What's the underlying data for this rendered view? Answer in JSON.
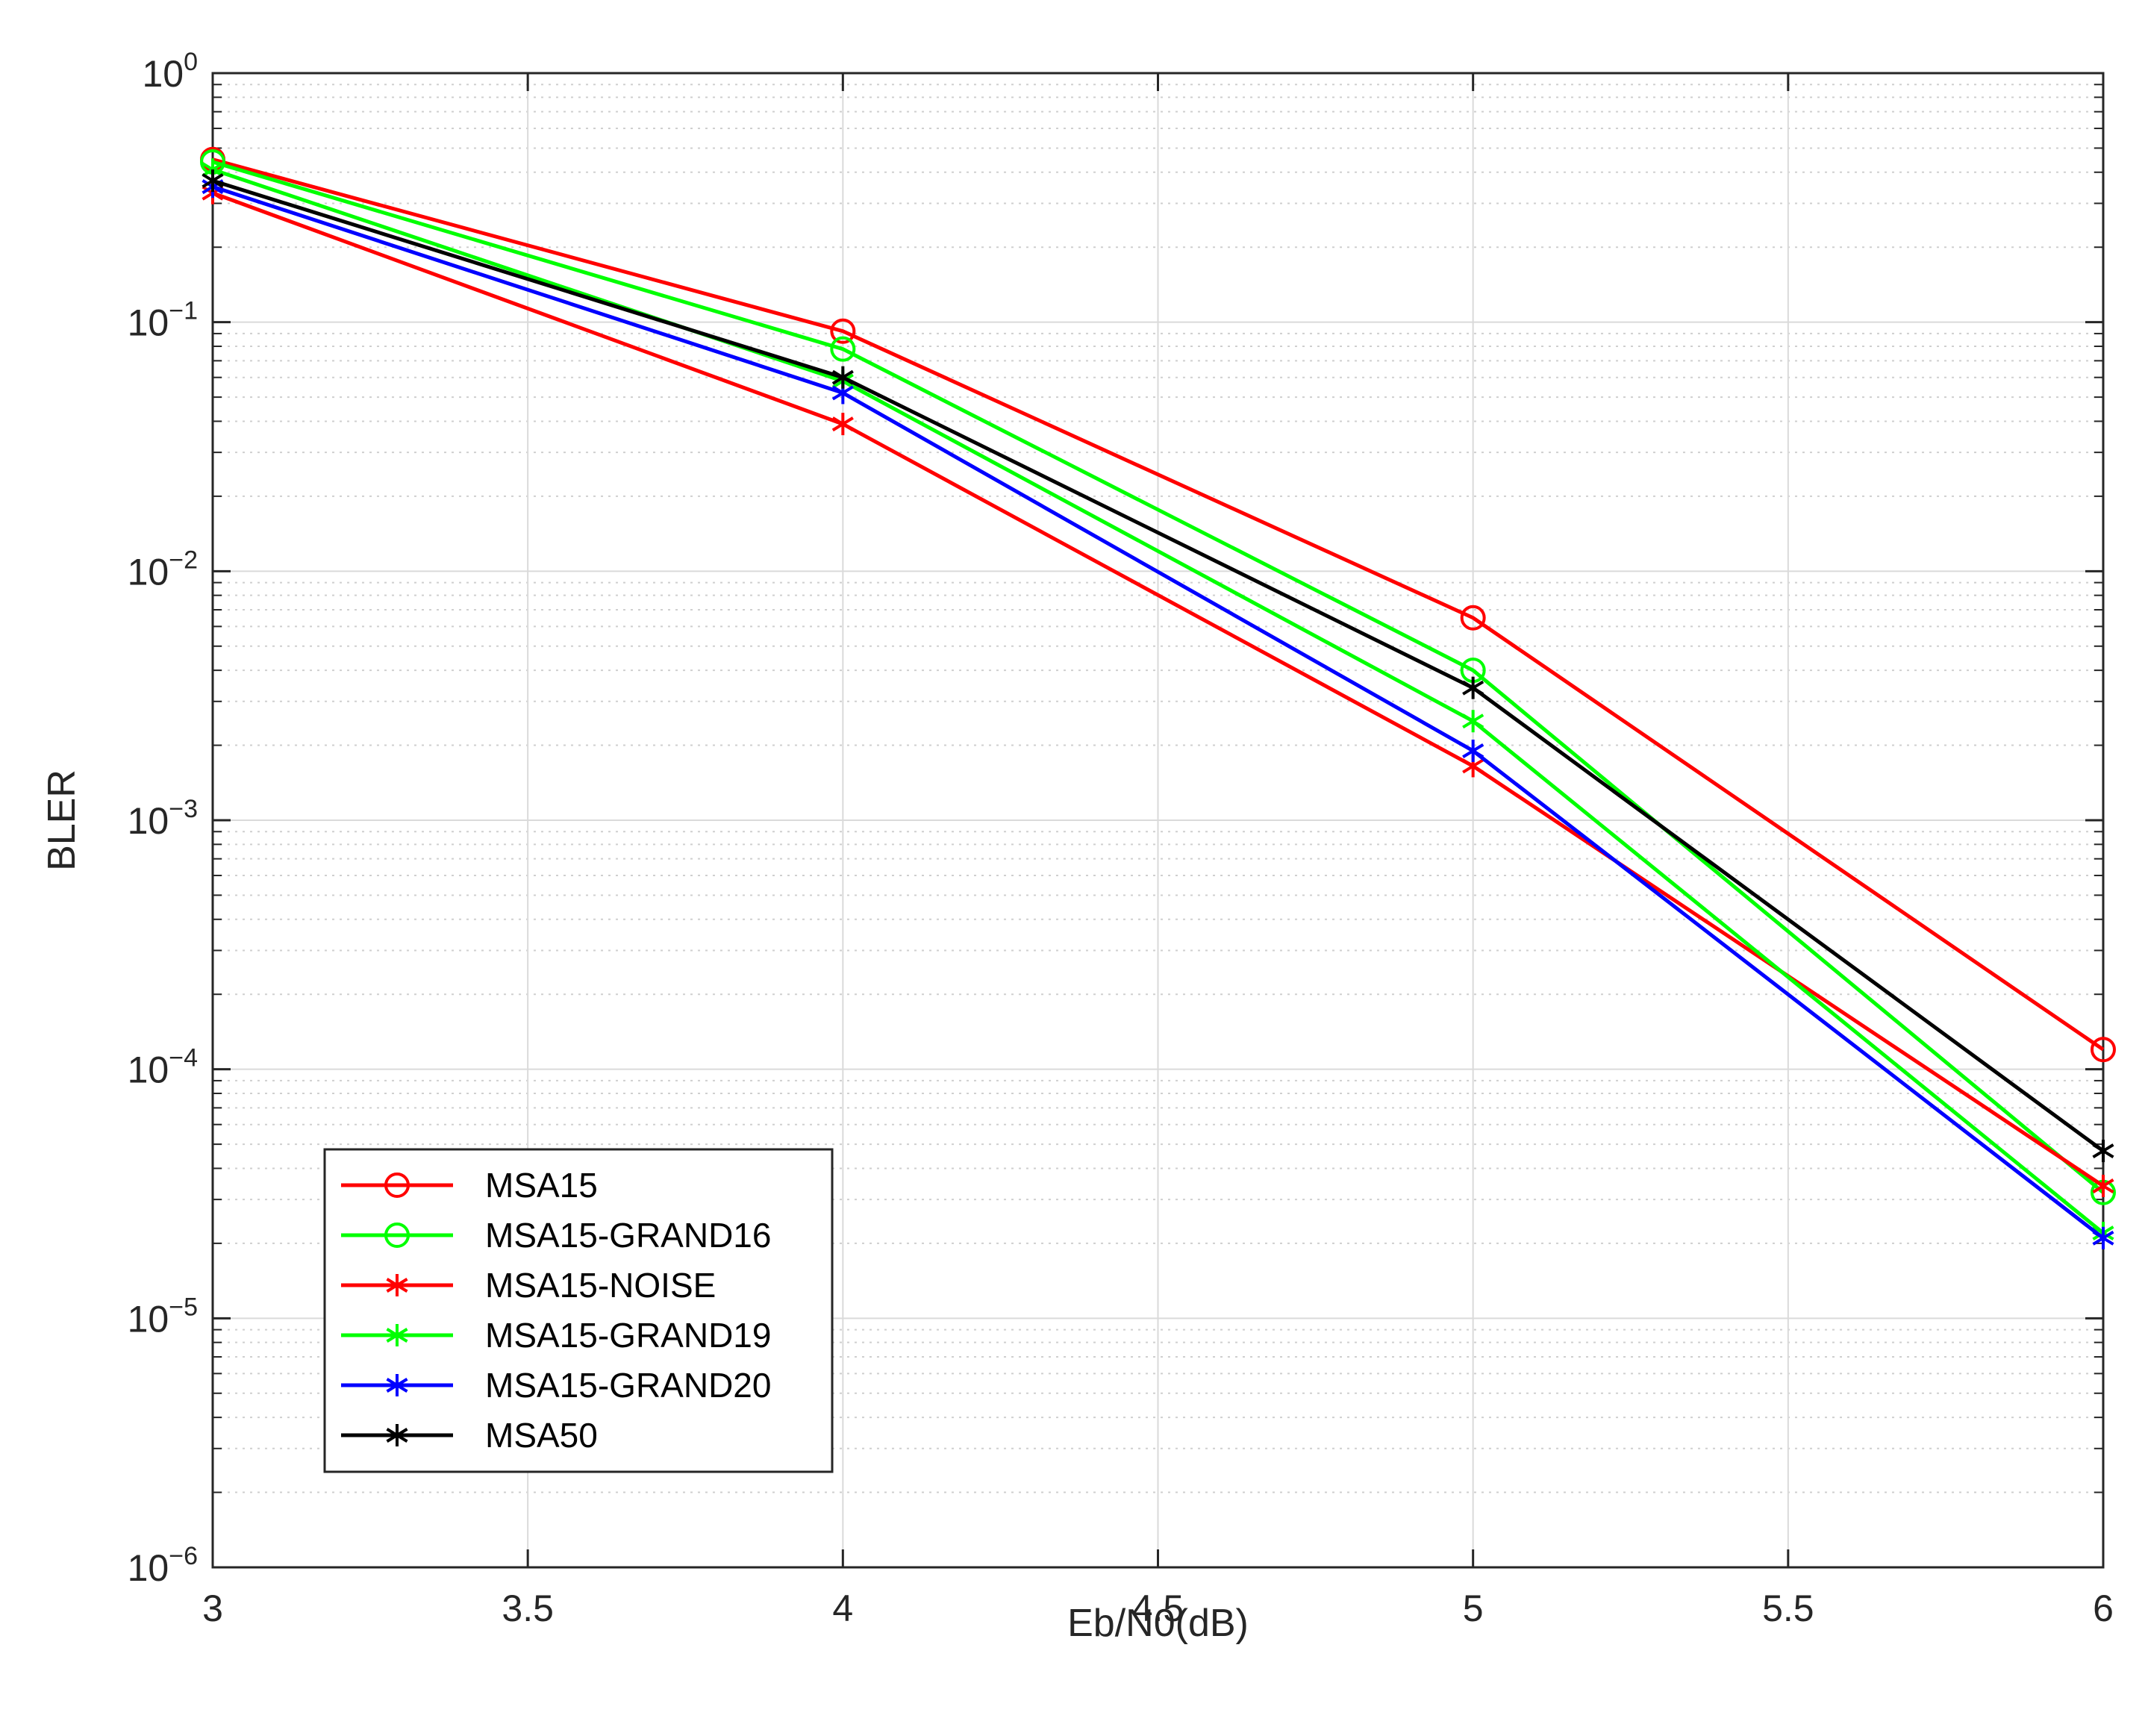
{
  "chart_data": {
    "type": "line",
    "xlabel": "Eb/N0(dB)",
    "ylabel": "BLER",
    "yscale": "log",
    "xlim": [
      3,
      6
    ],
    "ylim": [
      1e-06,
      1
    ],
    "grid": true,
    "legend_position": "bottom-left",
    "x_ticks": [
      3,
      3.5,
      4,
      4.5,
      5,
      5.5,
      6
    ],
    "x_tick_labels": [
      "3",
      "3.5",
      "4",
      "4.5",
      "5",
      "5.5",
      "6"
    ],
    "y_ticks": [
      {
        "exp": 0,
        "base": "10",
        "sup": "0"
      },
      {
        "exp": -1,
        "base": "10",
        "sup": "−1"
      },
      {
        "exp": -2,
        "base": "10",
        "sup": "−2"
      },
      {
        "exp": -3,
        "base": "10",
        "sup": "−3"
      },
      {
        "exp": -4,
        "base": "10",
        "sup": "−4"
      },
      {
        "exp": -5,
        "base": "10",
        "sup": "−5"
      },
      {
        "exp": -6,
        "base": "10",
        "sup": "−6"
      }
    ],
    "x": [
      3,
      4,
      5,
      6
    ],
    "series": [
      {
        "name": "MSA15",
        "color": "#ff0000",
        "marker": "circle",
        "values": [
          0.45,
          0.092,
          0.0065,
          0.00012
        ]
      },
      {
        "name": "MSA15-GRAND16",
        "color": "#00ff00",
        "marker": "circle",
        "values": [
          0.44,
          0.078,
          0.004,
          3.2e-05
        ]
      },
      {
        "name": "MSA15-NOISE",
        "color": "#ff0000",
        "marker": "star",
        "values": [
          0.33,
          0.039,
          0.00165,
          3.4e-05
        ]
      },
      {
        "name": "MSA15-GRAND19",
        "color": "#00ff00",
        "marker": "star",
        "values": [
          0.41,
          0.058,
          0.0025,
          2.2e-05
        ]
      },
      {
        "name": "MSA15-GRAND20",
        "color": "#0000ff",
        "marker": "star",
        "values": [
          0.35,
          0.052,
          0.0019,
          2.1e-05
        ]
      },
      {
        "name": "MSA50",
        "color": "#000000",
        "marker": "star",
        "values": [
          0.37,
          0.06,
          0.0034,
          4.7e-05
        ]
      }
    ]
  }
}
